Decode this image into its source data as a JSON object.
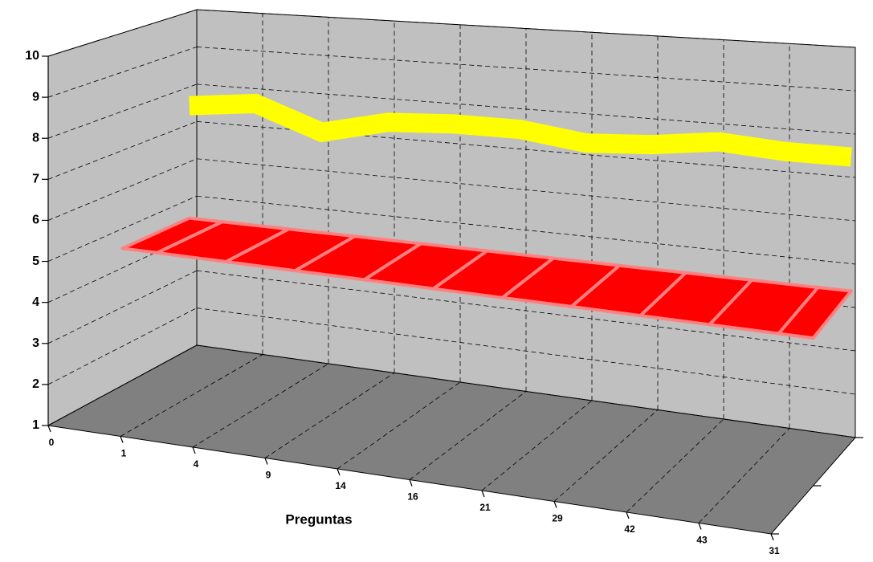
{
  "chart_data": {
    "type": "ribbon3d",
    "x_label": "Preguntas",
    "categories": [
      "0",
      "1",
      "4",
      "9",
      "14",
      "16",
      "21",
      "29",
      "42",
      "43",
      "31"
    ],
    "series": [
      {
        "color": "#ffff00",
        "values": [
          7.5,
          7.7,
          7.1,
          7.5,
          7.6,
          7.6,
          7.4,
          7.5,
          7.7,
          7.6,
          7.6
        ]
      },
      {
        "color": "#ff0000",
        "values": [
          4.5,
          4.5,
          4.5,
          4.5,
          4.5,
          4.5,
          4.5,
          4.5,
          4.5,
          4.5,
          4.5
        ]
      }
    ],
    "ylim": [
      1,
      10
    ],
    "yticks": [
      1,
      2,
      3,
      4,
      5,
      6,
      7,
      8,
      9,
      10
    ],
    "grid": true
  }
}
